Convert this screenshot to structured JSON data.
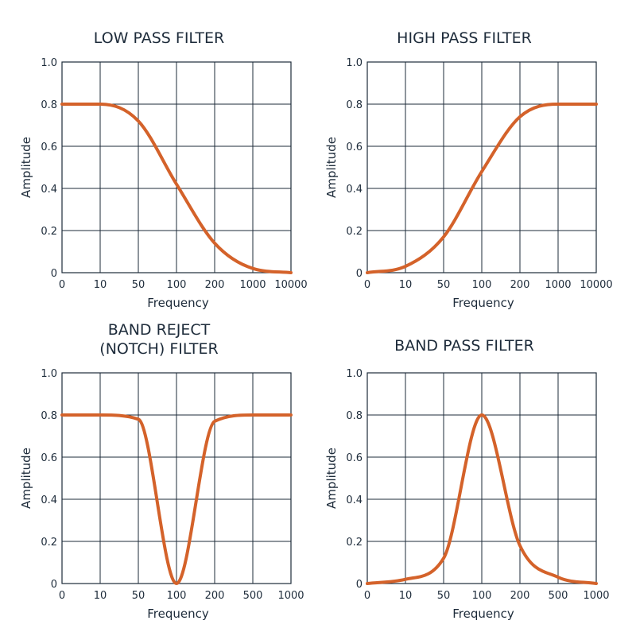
{
  "colors": {
    "curve": "#d4622a",
    "grid": "#1d2b3a",
    "text": "#1d2b3a"
  },
  "chart_data": [
    {
      "type": "line",
      "title": "LOW PASS FILTER",
      "title_lines": [
        "LOW PASS FILTER"
      ],
      "xlabel": "Frequency",
      "ylabel": "Amplitude",
      "x_ticks": [
        "0",
        "10",
        "50",
        "100",
        "200",
        "1000",
        "10000"
      ],
      "y_ticks": [
        "0",
        "0.2",
        "0.4",
        "0.6",
        "0.8",
        "1.0"
      ],
      "ylim": [
        0,
        1.0
      ],
      "grid": true,
      "series": [
        {
          "x": [
            "0",
            "10",
            "50",
            "100",
            "200",
            "1000",
            "10000"
          ],
          "y": [
            0.8,
            0.8,
            0.72,
            0.42,
            0.14,
            0.02,
            0.0
          ]
        }
      ]
    },
    {
      "type": "line",
      "title": "HIGH PASS FILTER",
      "title_lines": [
        "HIGH PASS FILTER"
      ],
      "xlabel": "Frequency",
      "ylabel": "Amplitude",
      "x_ticks": [
        "0",
        "10",
        "50",
        "100",
        "200",
        "1000",
        "10000"
      ],
      "y_ticks": [
        "0",
        "0.2",
        "0.4",
        "0.6",
        "0.8",
        "1.0"
      ],
      "ylim": [
        0,
        1.0
      ],
      "grid": true,
      "series": [
        {
          "x": [
            "0",
            "10",
            "50",
            "100",
            "200",
            "1000",
            "10000"
          ],
          "y": [
            0.0,
            0.03,
            0.17,
            0.48,
            0.74,
            0.8,
            0.8
          ]
        }
      ]
    },
    {
      "type": "line",
      "title": "BAND REJECT (NOTCH) FILTER",
      "title_lines": [
        "BAND REJECT",
        "(NOTCH) FILTER"
      ],
      "xlabel": "Frequency",
      "ylabel": "Amplitude",
      "x_ticks": [
        "0",
        "10",
        "50",
        "100",
        "200",
        "500",
        "1000"
      ],
      "y_ticks": [
        "0",
        "0.2",
        "0.4",
        "0.6",
        "0.8",
        "1.0"
      ],
      "ylim": [
        0,
        1.0
      ],
      "grid": true,
      "series": [
        {
          "x": [
            "0",
            "10",
            "50",
            "100",
            "200",
            "500",
            "1000"
          ],
          "y": [
            0.8,
            0.8,
            0.78,
            0.0,
            0.77,
            0.8,
            0.8
          ]
        }
      ]
    },
    {
      "type": "line",
      "title": "BAND PASS FILTER",
      "title_lines": [
        "BAND PASS FILTER"
      ],
      "xlabel": "Frequency",
      "ylabel": "Amplitude",
      "x_ticks": [
        "0",
        "10",
        "50",
        "100",
        "200",
        "500",
        "1000"
      ],
      "y_ticks": [
        "0",
        "0.2",
        "0.4",
        "0.6",
        "0.8",
        "1.0"
      ],
      "ylim": [
        0,
        1.0
      ],
      "grid": true,
      "series": [
        {
          "x": [
            "0",
            "10",
            "50",
            "100",
            "200",
            "500",
            "1000"
          ],
          "y": [
            0.0,
            0.02,
            0.12,
            0.8,
            0.18,
            0.03,
            0.0
          ]
        }
      ]
    }
  ]
}
